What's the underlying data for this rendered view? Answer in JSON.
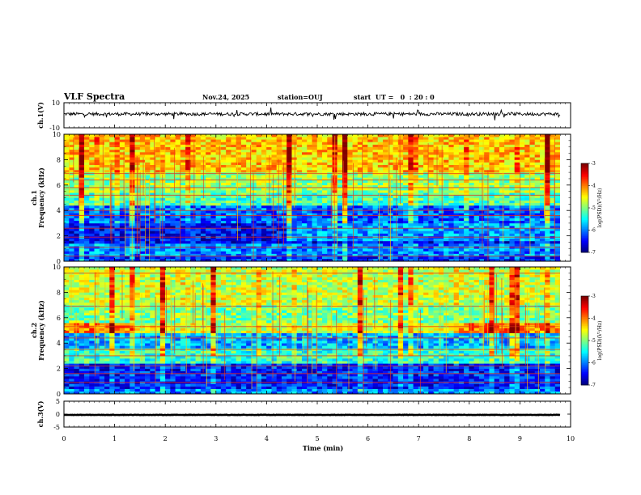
{
  "header": {
    "title": "VLF Spectra",
    "date": "Nov.24, 2025",
    "station": "station=OUJ",
    "start": "start  UT =   0  : 20 : 0"
  },
  "chart_data": [
    {
      "type": "line",
      "name": "ch1-waveform",
      "ylabel": "ch.1(V)",
      "ylim": [
        -10,
        10
      ],
      "ytick_labels": [
        "10",
        "-10"
      ],
      "xlim": [
        0,
        10
      ],
      "baseline": 1,
      "noise": 2.5
    },
    {
      "type": "heatmap",
      "name": "ch1-spectrogram",
      "ylabel": "ch.1\nFrequency (kHz)",
      "ylim": [
        0,
        10
      ],
      "ytick_labels": [
        "0",
        "2",
        "4",
        "6",
        "8",
        "10"
      ],
      "xlim": [
        0,
        9.8
      ],
      "colorbar": {
        "label": "log(PSD)(V²/Hz)",
        "range": [
          -7,
          -3
        ],
        "tick_labels": [
          "-3",
          "-4",
          "-5",
          "-6",
          "-7"
        ]
      },
      "bands": [
        {
          "f": [
            0,
            0.5
          ],
          "level": -6.3
        },
        {
          "f": [
            0.5,
            1.5
          ],
          "level": -6.0
        },
        {
          "f": [
            1.5,
            3.0
          ],
          "level": -6.5
        },
        {
          "f": [
            3.0,
            4.5
          ],
          "level": -6.1
        },
        {
          "f": [
            4.5,
            5.5
          ],
          "level": -5.2
        },
        {
          "f": [
            5.5,
            7.0
          ],
          "level": -4.9
        },
        {
          "f": [
            7.0,
            10.0
          ],
          "level": -4.3
        }
      ],
      "lines_khz": [
        6.9,
        6.4,
        5.8,
        5.2,
        4.0,
        3.6,
        2.6,
        1.9,
        1.1,
        0.4
      ]
    },
    {
      "type": "heatmap",
      "name": "ch2-spectrogram",
      "ylabel": "ch.2\nFrequency (kHz)",
      "ylim": [
        0,
        10
      ],
      "ytick_labels": [
        "0",
        "2",
        "4",
        "6",
        "8",
        "10"
      ],
      "xlim": [
        0,
        9.8
      ],
      "colorbar": {
        "label": "log(PSD)(V²/Hz)",
        "range": [
          -7,
          -3
        ],
        "tick_labels": [
          "-3",
          "-4",
          "-5",
          "-6",
          "-7"
        ]
      },
      "bands": [
        {
          "f": [
            0,
            0.5
          ],
          "level": -6.0
        },
        {
          "f": [
            0.5,
            2.5
          ],
          "level": -6.4
        },
        {
          "f": [
            2.5,
            3.6
          ],
          "level": -5.3
        },
        {
          "f": [
            3.6,
            4.8
          ],
          "level": -5.8
        },
        {
          "f": [
            4.8,
            5.6
          ],
          "level": -4.0
        },
        {
          "f": [
            5.6,
            7.0
          ],
          "level": -5.0
        },
        {
          "f": [
            7.0,
            10.0
          ],
          "level": -4.7
        }
      ],
      "lines_khz": [
        9.5,
        6.9,
        5.3,
        4.4,
        3.5,
        3.0,
        2.2,
        1.6,
        0.9
      ]
    },
    {
      "type": "line",
      "name": "ch3-waveform",
      "ylabel": "ch.3(V)",
      "ylim": [
        -5,
        5
      ],
      "ytick_labels": [
        "5",
        "0",
        "-5"
      ],
      "xlim": [
        0,
        10
      ],
      "baseline": -0.3,
      "noise": 0.15
    }
  ],
  "x_axis": {
    "label": "Time (min)",
    "tick_labels": [
      "0",
      "1",
      "2",
      "3",
      "4",
      "5",
      "6",
      "7",
      "8",
      "9",
      "10"
    ],
    "range": [
      0,
      10
    ]
  }
}
